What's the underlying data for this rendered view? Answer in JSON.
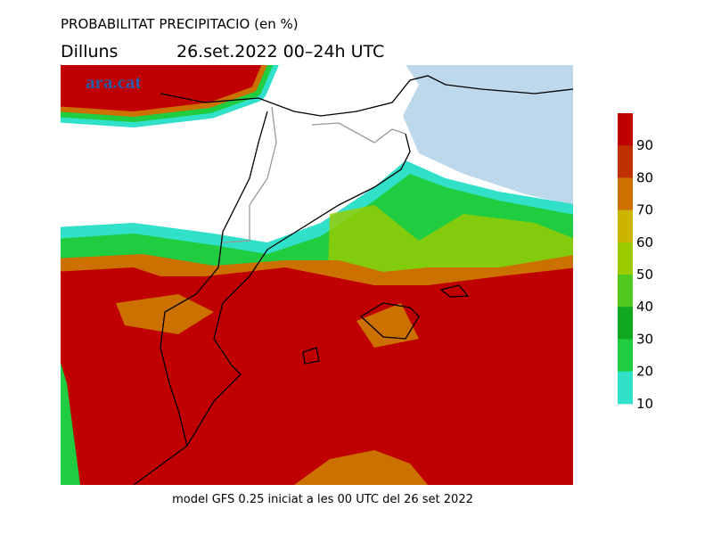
{
  "header": {
    "title": "PROBABILITAT PRECIPITACIO (en %)",
    "day": "Dilluns",
    "date": "26.set.2022 00–24h UTC"
  },
  "watermark": "ara.cat",
  "footer": "model GFS 0.25 iniciat a les 00 UTC del 26 set 2022",
  "colorbar": {
    "labels": [
      90,
      80,
      70,
      60,
      50,
      40,
      30,
      20,
      10
    ],
    "colors": [
      "#c00000",
      "#c03000",
      "#cc7000",
      "#ccb400",
      "#9ccc00",
      "#50c820",
      "#10a820",
      "#20cc40",
      "#30e0c8"
    ]
  }
}
